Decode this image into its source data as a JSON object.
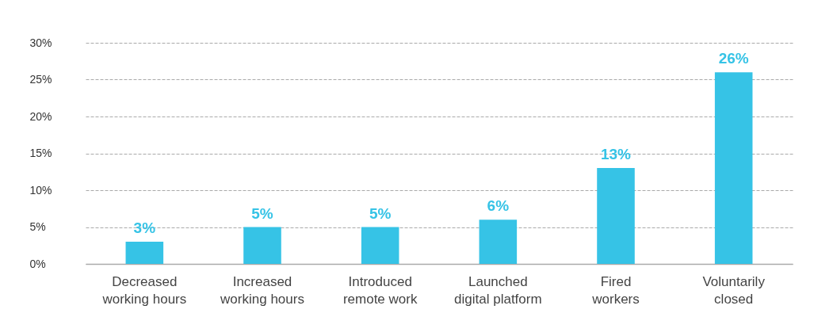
{
  "chart_data": {
    "type": "bar",
    "categories": [
      "Decreased\nworking hours",
      "Increased\nworking hours",
      "Introduced\nremote work",
      "Launched\ndigital platform",
      "Fired\nworkers",
      "Voluntarily\nclosed"
    ],
    "values": [
      3,
      5,
      5,
      6,
      13,
      26
    ],
    "value_labels": [
      "3%",
      "5%",
      "5%",
      "6%",
      "13%",
      "26%"
    ],
    "color": "#36c3e6",
    "ylim": [
      0,
      30
    ],
    "yticks": [
      {
        "value": 0,
        "label": "0%"
      },
      {
        "value": 5,
        "label": "5%"
      },
      {
        "value": 10,
        "label": "10%"
      },
      {
        "value": 15,
        "label": "15%"
      },
      {
        "value": 20,
        "label": "20%"
      },
      {
        "value": 25,
        "label": "25%"
      },
      {
        "value": 30,
        "label": "30%"
      }
    ],
    "grid": "y"
  }
}
